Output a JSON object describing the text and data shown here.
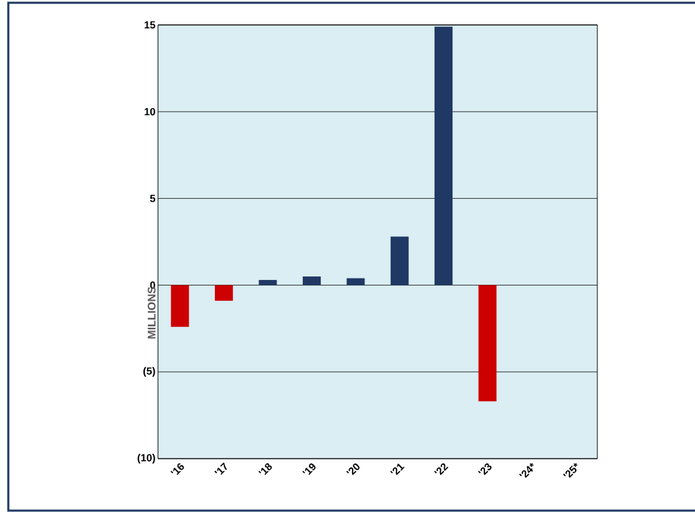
{
  "chart_data": {
    "type": "bar",
    "ylabel": "MILLIONS",
    "categories": [
      "'16",
      "'17",
      "'18",
      "'19",
      "'20",
      "'21",
      "'22",
      "'23",
      "'24*",
      "'25*"
    ],
    "values": [
      -2.4,
      -0.9,
      0.3,
      0.5,
      0.4,
      2.8,
      14.9,
      -6.7,
      0,
      0
    ],
    "colors": [
      "#cc0000",
      "#cc0000",
      "#1f3864",
      "#1f3864",
      "#1f3864",
      "#1f3864",
      "#1f3864",
      "#cc0000",
      "#1f3864",
      "#1f3864"
    ],
    "ylim": [
      -10,
      15
    ],
    "yticks": [
      {
        "value": -10,
        "label": "(10)"
      },
      {
        "value": -5,
        "label": "(5)"
      },
      0,
      5,
      10,
      15
    ],
    "grid": "y"
  }
}
